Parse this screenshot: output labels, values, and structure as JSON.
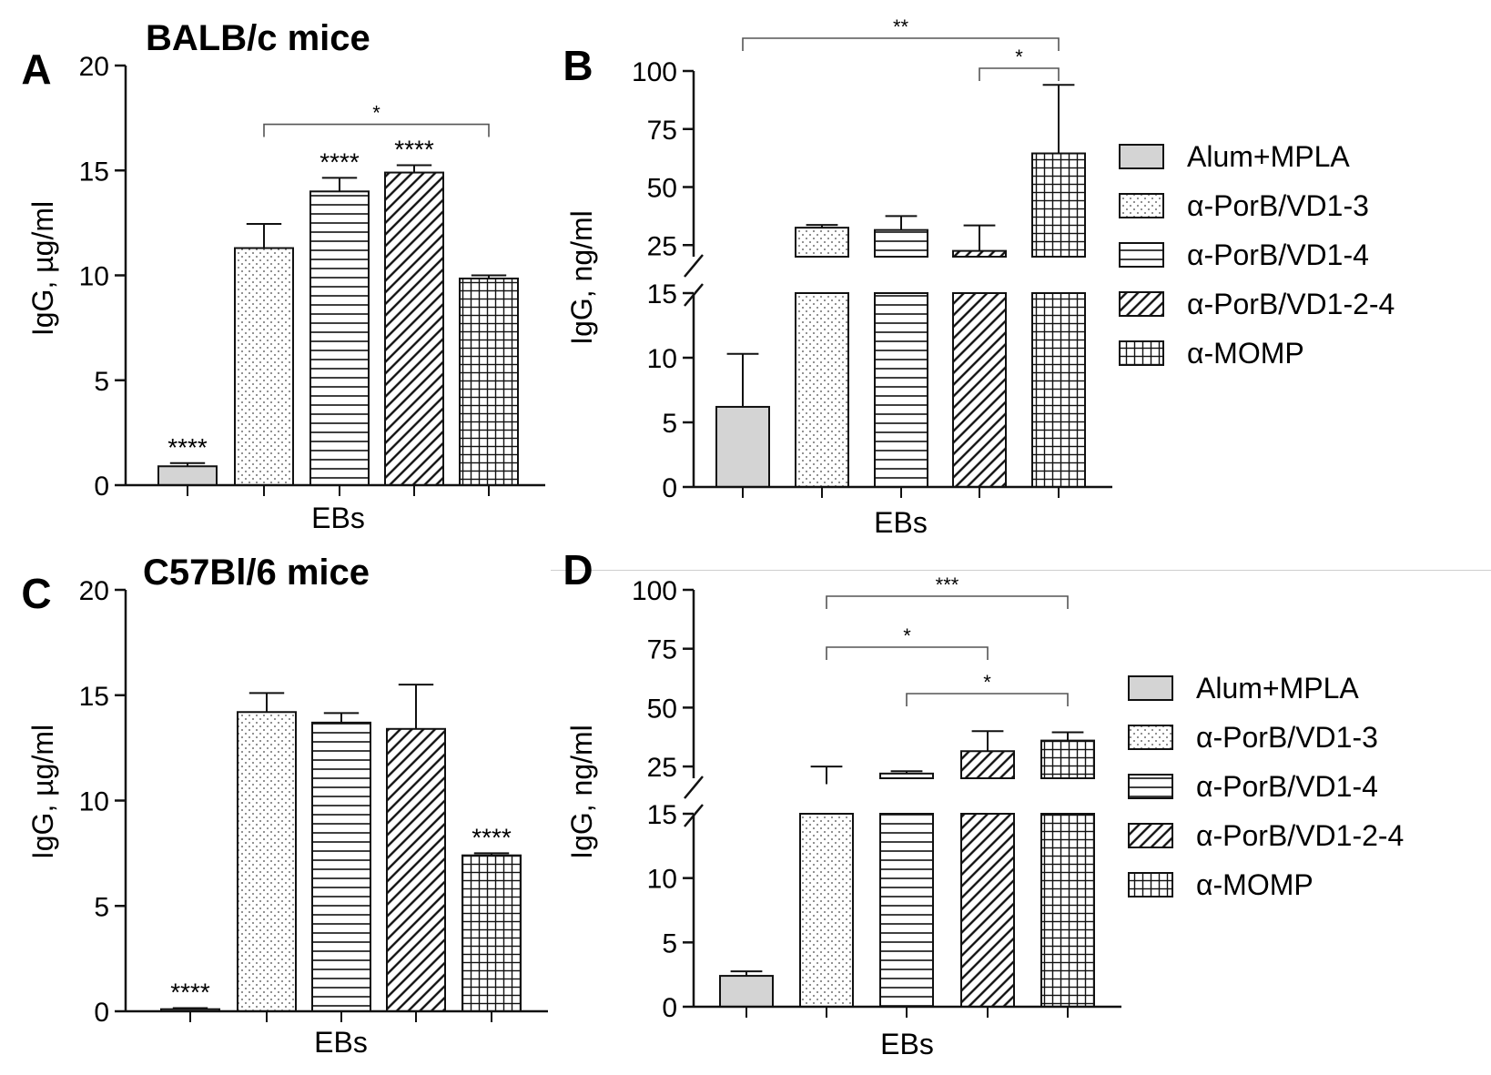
{
  "figure": {
    "legend_entries": [
      "Alum+MPLA",
      "α-PorB/VD1-3",
      "α-PorB/VD1-4",
      "α-PorB/VD1-2-4",
      "α-MOMP"
    ]
  },
  "chart_data": [
    {
      "panel": "A",
      "type": "bar",
      "title": "BALB/c mice",
      "xlabel": "EBs",
      "ylabel": "IgG, µg/ml",
      "ylim": [
        0,
        20
      ],
      "yticks": [
        "0",
        "5",
        "10",
        "15",
        "20"
      ],
      "categories": [
        "Alum+MPLA",
        "α-PorB/VD1-3",
        "α-PorB/VD1-4",
        "α-PorB/VD1-2-4",
        "α-MOMP"
      ],
      "values": [
        0.9,
        11.3,
        14.0,
        14.9,
        9.85
      ],
      "errors": [
        0.15,
        1.15,
        0.65,
        0.35,
        0.15
      ],
      "bar_labels": [
        "****",
        "",
        "****",
        "****",
        ""
      ],
      "significance": [
        {
          "from": 1,
          "to": 4,
          "label": "*"
        }
      ],
      "legend": "none"
    },
    {
      "panel": "B",
      "type": "bar",
      "title": "",
      "xlabel": "EBs",
      "ylabel": "IgG, ng/ml",
      "axis_break": {
        "lower": [
          0,
          15
        ],
        "upper": [
          20,
          100
        ]
      },
      "yticks": [
        "0",
        "5",
        "10",
        "15",
        "25",
        "50",
        "75",
        "100"
      ],
      "categories": [
        "Alum+MPLA",
        "α-PorB/VD1-3",
        "α-PorB/VD1-4",
        "α-PorB/VD1-2-4",
        "α-MOMP"
      ],
      "values": [
        6.2,
        32.5,
        31.5,
        22.5,
        64.5
      ],
      "errors": [
        4.1,
        1.2,
        6.0,
        11.0,
        29.5
      ],
      "bar_labels": [
        "",
        "",
        "",
        "",
        ""
      ],
      "significance": [
        {
          "from": 0,
          "to": 4,
          "label": "**"
        },
        {
          "from": 3,
          "to": 4,
          "label": "*"
        }
      ],
      "legend": "right"
    },
    {
      "panel": "C",
      "type": "bar",
      "title": "C57Bl/6 mice",
      "xlabel": "EBs",
      "ylabel": "IgG, µg/ml",
      "ylim": [
        0,
        20
      ],
      "yticks": [
        "0",
        "5",
        "10",
        "15",
        "20"
      ],
      "categories": [
        "Alum+MPLA",
        "α-PorB/VD1-3",
        "α-PorB/VD1-4",
        "α-PorB/VD1-2-4",
        "α-MOMP"
      ],
      "values": [
        0.1,
        14.2,
        13.7,
        13.4,
        7.4
      ],
      "errors": [
        0.05,
        0.9,
        0.45,
        2.1,
        0.1
      ],
      "bar_labels": [
        "****",
        "",
        "",
        "",
        "****"
      ],
      "significance": [],
      "legend": "none"
    },
    {
      "panel": "D",
      "type": "bar",
      "title": "",
      "xlabel": "EBs",
      "ylabel": "IgG, ng/ml",
      "axis_break": {
        "lower": [
          0,
          15
        ],
        "upper": [
          20,
          100
        ]
      },
      "yticks": [
        "0",
        "5",
        "10",
        "15",
        "25",
        "50",
        "75",
        "100"
      ],
      "categories": [
        "Alum+MPLA",
        "α-PorB/VD1-3",
        "α-PorB/VD1-4",
        "α-PorB/VD1-2-4",
        "α-MOMP"
      ],
      "values": [
        2.4,
        17.5,
        22.0,
        31.5,
        36.0
      ],
      "errors": [
        0.35,
        7.5,
        1.0,
        8.5,
        3.5
      ],
      "bar_labels": [
        "",
        "",
        "",
        "",
        ""
      ],
      "significance": [
        {
          "from": 1,
          "to": 4,
          "label": "***"
        },
        {
          "from": 1,
          "to": 3,
          "label": "*"
        },
        {
          "from": 2,
          "to": 4,
          "label": "*"
        }
      ],
      "legend": "right"
    }
  ]
}
